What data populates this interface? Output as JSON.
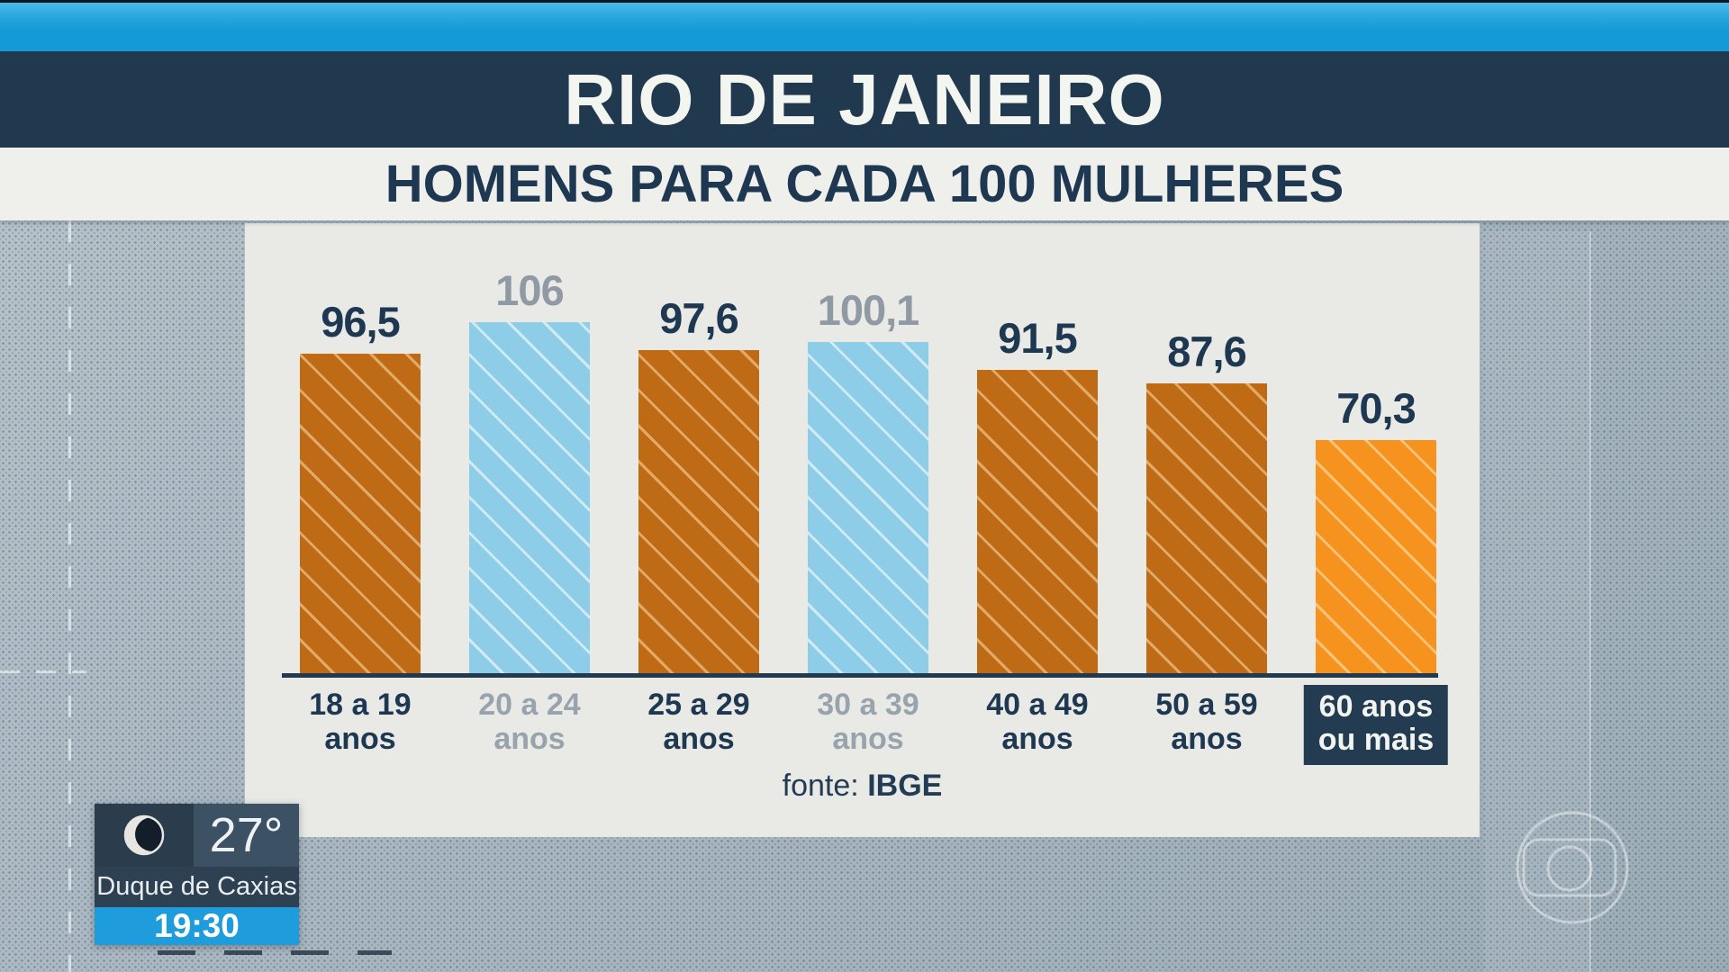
{
  "chart_data": {
    "type": "bar",
    "title": "RIO DE JANEIRO",
    "subtitle": "HOMENS PARA CADA 100 MULHERES",
    "unit": "homens para cada 100 mulheres",
    "categories": [
      [
        "18 a 19",
        "anos"
      ],
      [
        "20 a 24",
        "anos"
      ],
      [
        "25 a 29",
        "anos"
      ],
      [
        "30 a 39",
        "anos"
      ],
      [
        "40 a 49",
        "anos"
      ],
      [
        "50 a 59",
        "anos"
      ],
      [
        "60 anos",
        "ou mais"
      ]
    ],
    "values": [
      96.5,
      106,
      97.6,
      100.1,
      91.5,
      87.6,
      70.3
    ],
    "value_labels": [
      "96,5",
      "106",
      "97,6",
      "100,1",
      "91,5",
      "87,6",
      "70,3"
    ],
    "bar_styles": [
      "brown",
      "blue",
      "brown",
      "blue",
      "brown",
      "brown",
      "orange"
    ],
    "highlighted_last_label": true,
    "ylim": [
      0,
      110
    ],
    "grid": false,
    "legend": null,
    "source_label": "fonte:",
    "source_name": "IBGE"
  },
  "colors": {
    "bar_brown": "#bf6b16",
    "bar_blue": "#8dcde7",
    "bar_orange": "#f6921e",
    "value_navy": "#1e3852",
    "value_gray": "#8f9aa5",
    "label_navy": "#1e3852",
    "label_gray": "#99a3ad",
    "header_navy": "#21394f",
    "band_cyan": "#149bd7",
    "axis_navy": "#223a50",
    "card_bg": "#e9eae6",
    "time_bar_blue": "#1e9cdc"
  },
  "weather": {
    "temperature": "27°",
    "location": "Duque de Caxias",
    "time": "19:30",
    "icon": "moon-icon"
  },
  "icons": {
    "weather": "waning-crescent-moon-icon",
    "watermark": "globo-logo"
  }
}
